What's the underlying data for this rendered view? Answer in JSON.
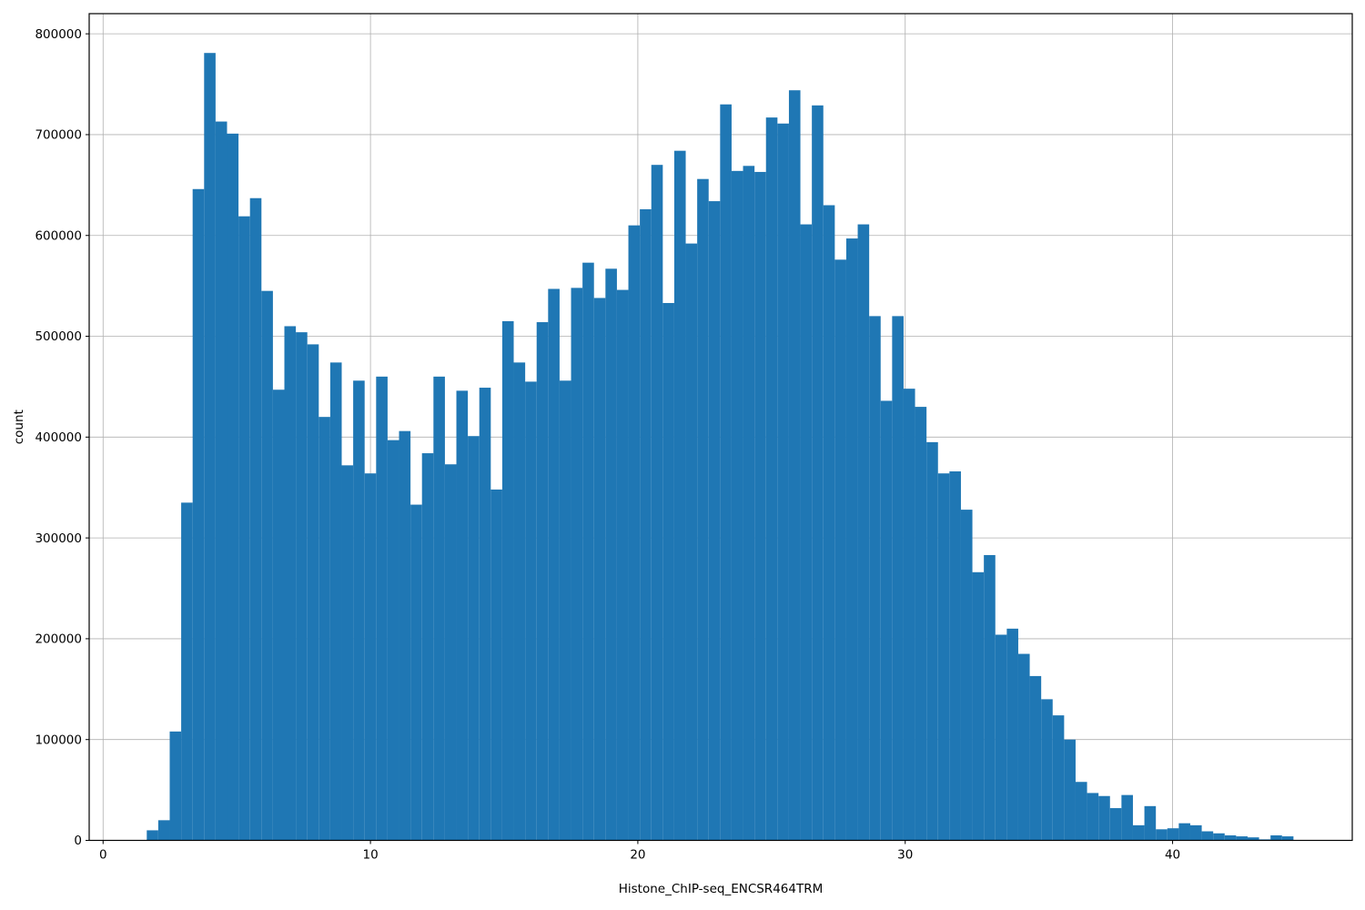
{
  "figure": {
    "background": "#ffffff"
  },
  "chart_data": {
    "type": "bar",
    "subtype": "histogram",
    "title": "",
    "xlabel": "Histone_ChIP-seq_ENCSR464TRM",
    "ylabel": "count",
    "bar_color": "#1f77b4",
    "grid": true,
    "grid_color": "#b0b0b0",
    "spine_color": "#000000",
    "tick_color": "#000000",
    "xlim": [
      -0.52,
      46.72
    ],
    "ylim": [
      0,
      820000
    ],
    "x_ticks": [
      0,
      10,
      20,
      30,
      40
    ],
    "x_tick_labels": [
      "0",
      "10",
      "20",
      "30",
      "40"
    ],
    "y_ticks": [
      0,
      100000,
      200000,
      300000,
      400000,
      500000,
      600000,
      700000,
      800000
    ],
    "y_tick_labels": [
      "0",
      "100000",
      "200000",
      "300000",
      "400000",
      "500000",
      "600000",
      "700000",
      "800000"
    ],
    "bins": {
      "start": 1.634,
      "width": 0.42887,
      "count": 100
    },
    "counts": [
      10000,
      20000,
      108000,
      335000,
      646000,
      781000,
      713000,
      701000,
      619000,
      637000,
      545000,
      447000,
      510000,
      504000,
      492000,
      420000,
      474000,
      372000,
      456000,
      364000,
      460000,
      397000,
      406000,
      333000,
      384000,
      460000,
      373000,
      446000,
      401000,
      449000,
      348000,
      515000,
      474000,
      455000,
      514000,
      547000,
      456000,
      548000,
      573000,
      538000,
      567000,
      546000,
      610000,
      626000,
      670000,
      533000,
      684000,
      592000,
      656000,
      634000,
      730000,
      664000,
      669000,
      663000,
      717000,
      711000,
      744000,
      611000,
      729000,
      630000,
      576000,
      597000,
      611000,
      520000,
      436000,
      520000,
      448000,
      430000,
      395000,
      364000,
      366000,
      328000,
      266000,
      283000,
      204000,
      210000,
      185000,
      163000,
      140000,
      124000,
      100000,
      58000,
      47000,
      44000,
      32000,
      45000,
      15000,
      34000,
      11000,
      12000,
      17000,
      15000,
      9000,
      7000,
      5000,
      4000,
      3000,
      1000,
      5000,
      4000
    ]
  }
}
